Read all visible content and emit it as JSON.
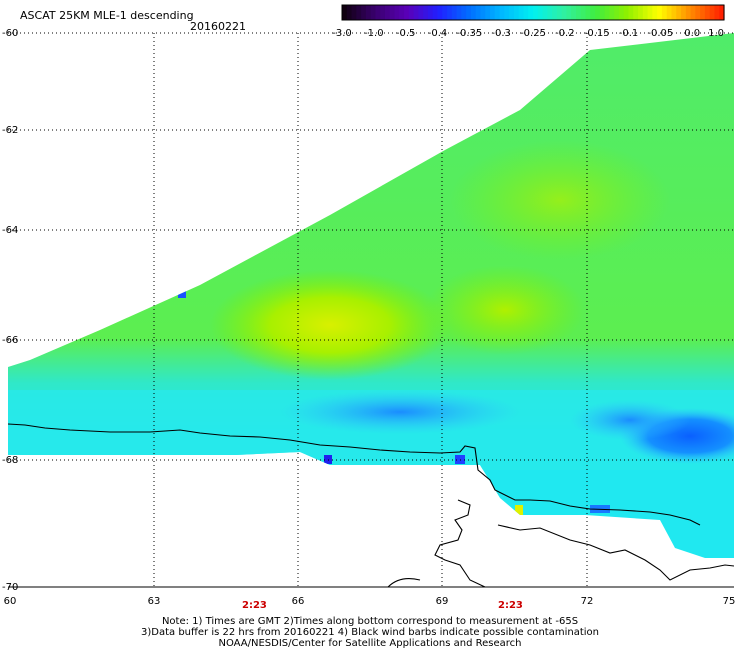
{
  "header": {
    "title": "ASCAT 25KM MLE-1 descending",
    "date": "20160221"
  },
  "colorbar": {
    "labels": [
      "-3.0",
      "-1.0",
      "-0.5",
      "-0.4",
      "-0.35",
      "-0.3",
      "-0.25",
      "-0.2",
      "-0.15",
      "-0.1",
      "-0.05",
      "0.0",
      "1.0"
    ],
    "colors": [
      "#100010",
      "#3a0070",
      "#5a00b8",
      "#2020ff",
      "#0070ff",
      "#00b8ff",
      "#00f0f0",
      "#30f0a0",
      "#40ee40",
      "#90f000",
      "#ffff00",
      "#ff8c00",
      "#ff2000"
    ]
  },
  "axes": {
    "y_ticks": [
      "-60",
      "-62",
      "-64",
      "-66",
      "-68",
      "-70"
    ],
    "x_ticks": [
      "60",
      "63",
      "66",
      "69",
      "72",
      "75"
    ]
  },
  "pass_times": [
    "2:23",
    "2:23"
  ],
  "notes": {
    "line1": "Note: 1) Times are GMT 2)Times along bottom correspond to measurement at -65S",
    "line2": "3)Data buffer is 22 hrs from 20160221 4) Black wind barbs indicate possible contamination",
    "line3": "NOAA/NESDIS/Center for Satellite Applications and Research"
  }
}
